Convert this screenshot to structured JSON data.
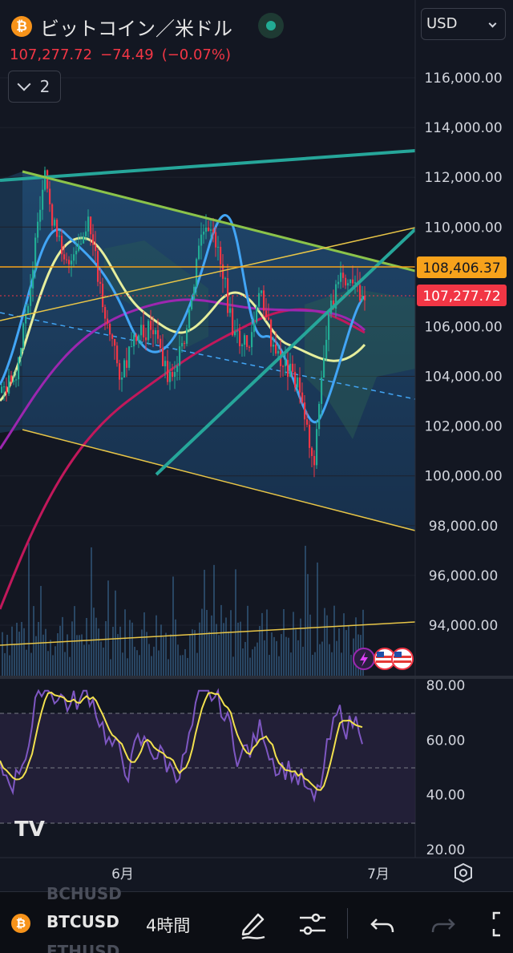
{
  "header": {
    "coin_symbol": "₿",
    "title": "ビットコイン／米ドル",
    "price": "107,277.72",
    "change": "−74.49",
    "change_pct": "(−0.07%)",
    "indicator_count": "2"
  },
  "currency_select": {
    "value": "USD"
  },
  "chart_data": {
    "type": "candlestick",
    "price_axis": {
      "ticks": [
        "116,000.00",
        "114,000.00",
        "112,000.00",
        "110,000.00",
        "106,000.00",
        "104,000.00",
        "102,000.00",
        "100,000.00",
        "98,000.00",
        "96,000.00",
        "94,000.00"
      ],
      "ylim": [
        92000,
        117000
      ]
    },
    "price_labels": {
      "current": "107,277.72",
      "alert_line": "108,406.37"
    },
    "rsi_axis": {
      "ticks": [
        "80.00",
        "60.00",
        "40.00",
        "20.00"
      ],
      "ylim": [
        20,
        80
      ],
      "bands": [
        70,
        50,
        30
      ]
    },
    "time_axis": {
      "ticks": [
        "6月",
        "7月"
      ]
    },
    "colors": {
      "up": "#22ab94",
      "down": "#f23645",
      "rsi": "#7e57c2",
      "rsi_ma": "#f2e14e",
      "trend": "#26a69a",
      "channel": "#e8c547",
      "alert": "#f7a21b",
      "ma_purple": "#9c27b0"
    }
  },
  "event_icons": [
    "lightning-icon",
    "us-flag-icon",
    "us-flag-icon"
  ],
  "watermark": "TV",
  "toolbar": {
    "coin_symbol": "₿",
    "symbol": "BTCUSD",
    "ghost_above": "BCHUSD",
    "ghost_below": "ETHUSD",
    "interval": "4時間"
  }
}
